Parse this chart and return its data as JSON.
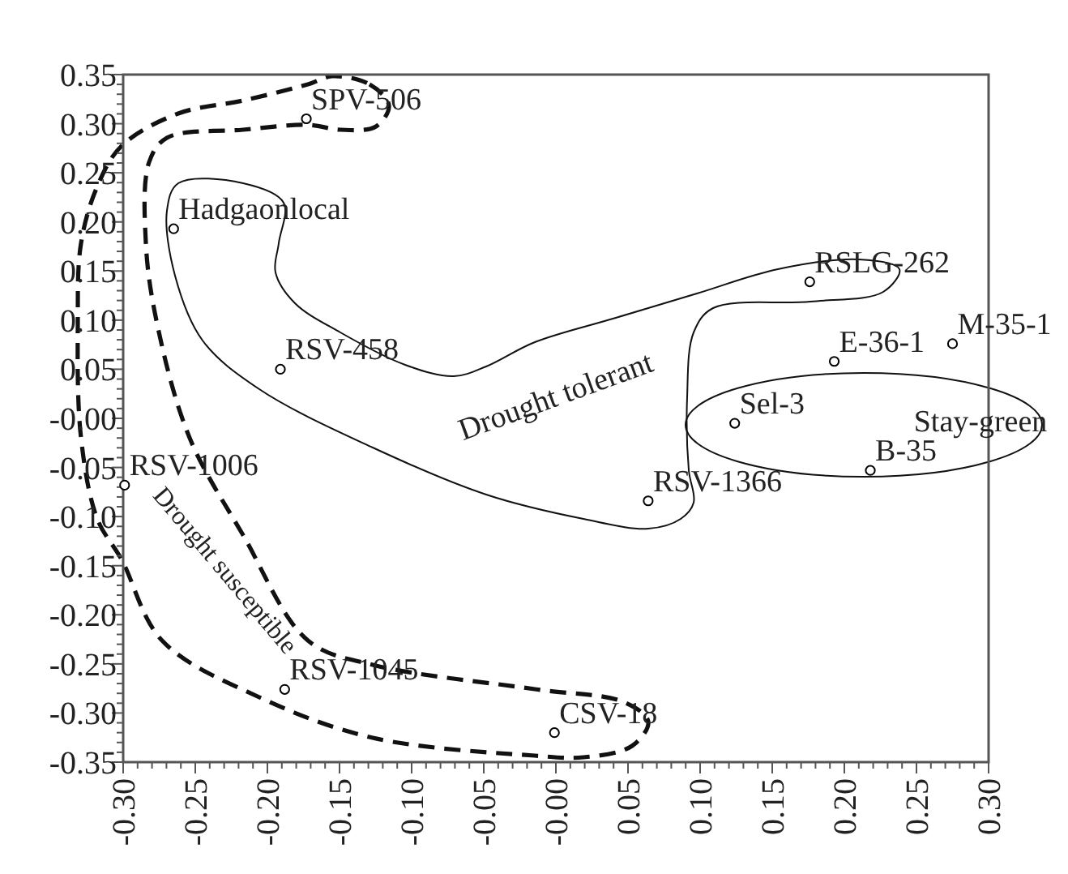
{
  "chart_data": {
    "type": "scatter",
    "marker": "circle",
    "grid": false,
    "x": [
      -0.173,
      -0.265,
      -0.191,
      0.176,
      0.193,
      0.275,
      0.124,
      0.218,
      0.064,
      -0.299,
      -0.188,
      -0.001
    ],
    "series": [
      {
        "color": "#000000",
        "values": [
          0.305,
          0.193,
          0.05,
          0.139,
          0.058,
          0.076,
          -0.005,
          -0.053,
          -0.084,
          -0.068,
          -0.276,
          -0.32
        ]
      }
    ],
    "xlim": [
      -0.3,
      0.3
    ],
    "ylim": [
      -0.35,
      0.35
    ],
    "xticks": [
      {
        "value": -0.3,
        "label": "-0.30"
      },
      -0.25,
      {
        "value": -0.2,
        "label": "-0.20"
      },
      -0.15,
      {
        "value": -0.1,
        "label": "-0.10"
      },
      -0.05,
      {
        "value": 0,
        "label": "-0.00"
      },
      0.05,
      {
        "value": 0.1,
        "label": "0.10"
      },
      0.15,
      {
        "value": 0.2,
        "label": "0.20"
      },
      0.25,
      {
        "value": 0.3,
        "label": "0.30"
      }
    ],
    "yticks": [
      -0.35,
      {
        "value": -0.3,
        "label": "-0.30"
      },
      -0.25,
      {
        "value": -0.2,
        "label": "-0.20"
      },
      -0.15,
      {
        "value": -0.1,
        "label": "-0.10"
      },
      -0.05,
      {
        "value": 0,
        "label": "-0.00"
      },
      0.05,
      {
        "value": 0.1,
        "label": "0.10"
      },
      0.15,
      {
        "value": 0.2,
        "label": "0.20"
      },
      0.25,
      {
        "value": 0.3,
        "label": "0.30"
      },
      0.35
    ],
    "annotations": [
      {
        "text": "SPV-506",
        "x": -0.173,
        "y": 0.305
      },
      {
        "text": "Hadgaonlocal",
        "x": -0.265,
        "y": 0.193
      },
      {
        "text": "RSV-458",
        "x": -0.191,
        "y": 0.05
      },
      {
        "text": "RSLG-262",
        "x": 0.176,
        "y": 0.139
      },
      {
        "text": "E-36-1",
        "x": 0.193,
        "y": 0.058
      },
      {
        "text": "M-35-1",
        "x": 0.275,
        "y": 0.076
      },
      {
        "text": "Sel-3",
        "x": 0.124,
        "y": -0.005
      },
      {
        "text": "B-35",
        "x": 0.218,
        "y": -0.053
      },
      {
        "text": "RSV-1366",
        "x": 0.064,
        "y": -0.084
      },
      {
        "text": "RSV-1006",
        "x": -0.299,
        "y": -0.068
      },
      {
        "text": "RSV-1045",
        "x": -0.188,
        "y": -0.276
      },
      {
        "text": "CSV-18",
        "x": -0.001,
        "y": -0.32
      },
      "Drought tolerant",
      "Stay-green",
      "Drought susceptible"
    ]
  }
}
